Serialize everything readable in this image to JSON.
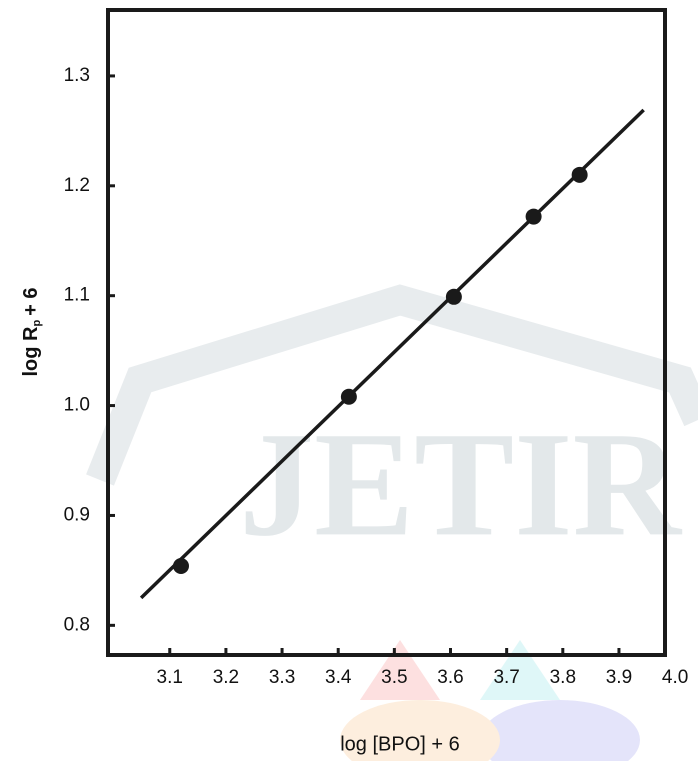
{
  "chart_data": {
    "type": "scatter",
    "watermark": "JETIR",
    "x_label": "log [BPO] + 6",
    "y_label": [
      "log R",
      "p",
      "+ 6"
    ],
    "x": [
      3.12,
      3.419,
      3.606,
      3.748,
      3.83
    ],
    "values": [
      0.854,
      1.008,
      1.099,
      1.172,
      1.21
    ],
    "color": "#1a1a1a",
    "fit": {
      "x": [
        3.049,
        3.944
      ],
      "values": [
        0.825,
        1.269
      ],
      "color": "#1a1a1a"
    },
    "xlim": [
      2.99,
      3.982
    ],
    "ylim": [
      0.773,
      1.36
    ],
    "xticks": [
      3.1,
      3.2,
      3.3,
      3.4,
      3.5,
      3.6,
      3.7,
      3.8,
      3.9,
      {
        "value": 4.0,
        "label": "4.0"
      }
    ],
    "yticks": [
      0.8,
      0.9,
      {
        "value": 1.0,
        "label": "1.0"
      },
      1.1,
      1.2,
      1.3
    ]
  }
}
